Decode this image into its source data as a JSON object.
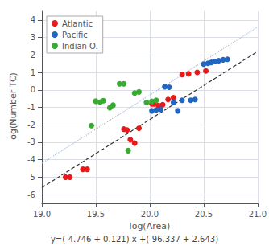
{
  "chart_data": {
    "type": "scatter",
    "subtitle": "y=(-4.746 + 0.121) x +(-96.337 + 2.643)",
    "xlabel": "log(Area)",
    "ylabel": "log(Number TC)",
    "xlim": [
      19.0,
      21.0
    ],
    "ylim": [
      -6.5,
      4.5
    ],
    "xticks": [
      {
        "value": 19.0,
        "label": "19.0"
      },
      19.5,
      {
        "value": 20.0,
        "label": "20.0"
      },
      20.5,
      {
        "value": 21.0,
        "label": "21.0"
      }
    ],
    "yticks": [
      -6,
      -5,
      -4,
      -3,
      -2,
      -1,
      0,
      1,
      2,
      3,
      4
    ],
    "grid": true,
    "legend": "upper left",
    "series": [
      {
        "type": "line",
        "line_style": "dotted",
        "color": "#aabbdd",
        "x": [
          19.0,
          21.0
        ],
        "values": [
          -4.2,
          3.6
        ]
      },
      {
        "type": "line",
        "line_style": "dashed",
        "color": "#333333",
        "x": [
          19.0,
          21.0
        ],
        "values": [
          -5.6,
          2.2
        ]
      },
      {
        "type": "scatter",
        "name": "Atlantic",
        "color": "#e8191a",
        "marker": "circle",
        "x": [
          19.22,
          19.26,
          19.38,
          19.42,
          19.76,
          19.79,
          19.82,
          19.86,
          19.9,
          20.02,
          20.04,
          20.08,
          20.12,
          20.17,
          20.22,
          20.3,
          20.36,
          20.44,
          20.52
        ],
        "values": [
          -5.0,
          -5.0,
          -4.55,
          -4.55,
          -2.25,
          -2.3,
          -2.85,
          -3.05,
          -2.2,
          -0.8,
          -0.8,
          -0.9,
          -0.85,
          -0.55,
          -0.45,
          0.88,
          0.92,
          1.0,
          1.08
        ]
      },
      {
        "type": "scatter",
        "name": "Pacific",
        "color": "#2166c0",
        "marker": "circle",
        "x": [
          20.02,
          20.06,
          20.1,
          20.14,
          20.18,
          20.22,
          20.26,
          20.3,
          20.38,
          20.42,
          20.5,
          20.54,
          20.57,
          20.6,
          20.64,
          20.68,
          20.72
        ],
        "values": [
          -1.2,
          -1.15,
          -1.1,
          0.18,
          0.15,
          -0.72,
          -1.2,
          -0.6,
          -0.6,
          -0.55,
          1.47,
          1.52,
          1.57,
          1.62,
          1.67,
          1.72,
          1.75
        ]
      },
      {
        "type": "scatter",
        "name": "Indian O.",
        "color": "#3aaa35",
        "marker": "circle",
        "x": [
          19.46,
          19.5,
          19.54,
          19.57,
          19.63,
          19.66,
          19.72,
          19.76,
          19.8,
          19.86,
          19.9,
          19.97,
          20.02,
          20.06
        ],
        "values": [
          -2.05,
          -0.65,
          -0.7,
          -0.62,
          -1.02,
          -0.88,
          0.35,
          0.35,
          -3.48,
          -0.18,
          -0.12,
          -0.72,
          -0.66,
          -0.6
        ]
      }
    ]
  }
}
